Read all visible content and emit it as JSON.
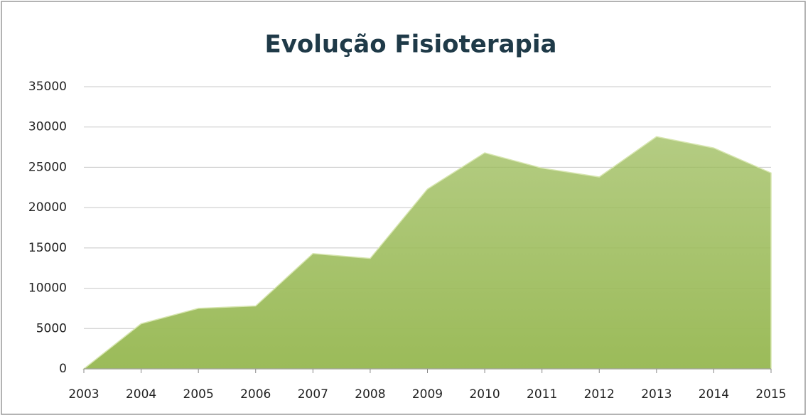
{
  "chart_data": {
    "type": "area",
    "title": "Evolução Fisioterapia",
    "categories": [
      "2003",
      "2004",
      "2005",
      "2006",
      "2007",
      "2008",
      "2009",
      "2010",
      "2011",
      "2012",
      "2013",
      "2014",
      "2015"
    ],
    "values": [
      0,
      5600,
      7500,
      7800,
      14300,
      13700,
      22300,
      26800,
      24900,
      23800,
      28800,
      27400,
      24300
    ],
    "color": "#9bbb59",
    "ylim": [
      0,
      35000
    ],
    "yticks": [
      0,
      5000,
      10000,
      15000,
      20000,
      25000,
      30000,
      35000
    ],
    "grid": true
  }
}
